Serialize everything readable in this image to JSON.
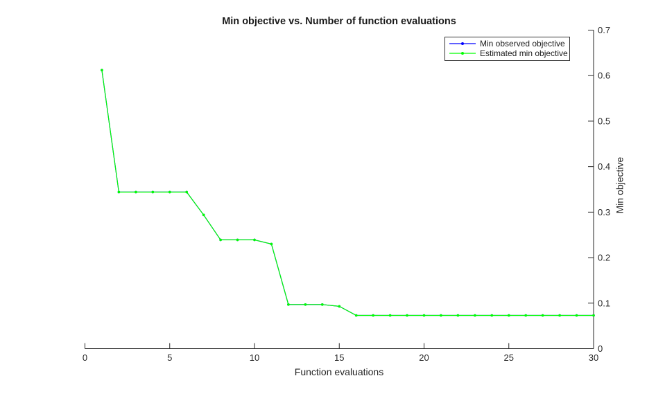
{
  "chart_data": {
    "type": "line",
    "title": "Min objective vs. Number of function evaluations",
    "xlabel": "Function evaluations",
    "ylabel": "Min objective",
    "xlim": [
      0,
      30
    ],
    "ylim": [
      0,
      0.7
    ],
    "xtick_values": [
      0,
      5,
      10,
      15,
      20,
      25,
      30
    ],
    "xtick_labels": [
      "0",
      "5",
      "10",
      "15",
      "20",
      "25",
      "30"
    ],
    "ytick_values": [
      0,
      0.1,
      0.2,
      0.3,
      0.4,
      0.5,
      0.6,
      0.7
    ],
    "ytick_labels": [
      "0",
      "0.1",
      "0.2",
      "0.3",
      "0.4",
      "0.5",
      "0.6",
      "0.7"
    ],
    "grid": false,
    "y_axis_location": "right",
    "legend_position": "northeast",
    "axis_color": "#262626",
    "background_color": "#ffffff",
    "x": [
      1,
      2,
      3,
      4,
      5,
      6,
      7,
      8,
      9,
      10,
      11,
      12,
      13,
      14,
      15,
      16,
      17,
      18,
      19,
      20,
      21,
      22,
      23,
      24,
      25,
      26,
      27,
      28,
      29,
      30
    ],
    "series": [
      {
        "name": "Min observed objective",
        "color": "#0000ff",
        "marker": "dot",
        "values": [
          0.612,
          0.344,
          0.344,
          0.344,
          0.344,
          0.344,
          0.294,
          0.239,
          0.239,
          0.239,
          0.23,
          0.097,
          0.097,
          0.097,
          0.093,
          0.073,
          0.073,
          0.073,
          0.073,
          0.073,
          0.073,
          0.073,
          0.073,
          0.073,
          0.073,
          0.073,
          0.073,
          0.073,
          0.073,
          0.073
        ]
      },
      {
        "name": "Estimated min objective",
        "color": "#00ff00",
        "marker": "dot",
        "values": [
          0.612,
          0.344,
          0.344,
          0.344,
          0.344,
          0.344,
          0.294,
          0.239,
          0.239,
          0.239,
          0.23,
          0.097,
          0.097,
          0.097,
          0.093,
          0.073,
          0.073,
          0.073,
          0.073,
          0.073,
          0.073,
          0.073,
          0.073,
          0.073,
          0.073,
          0.073,
          0.073,
          0.073,
          0.073,
          0.073
        ]
      }
    ]
  }
}
